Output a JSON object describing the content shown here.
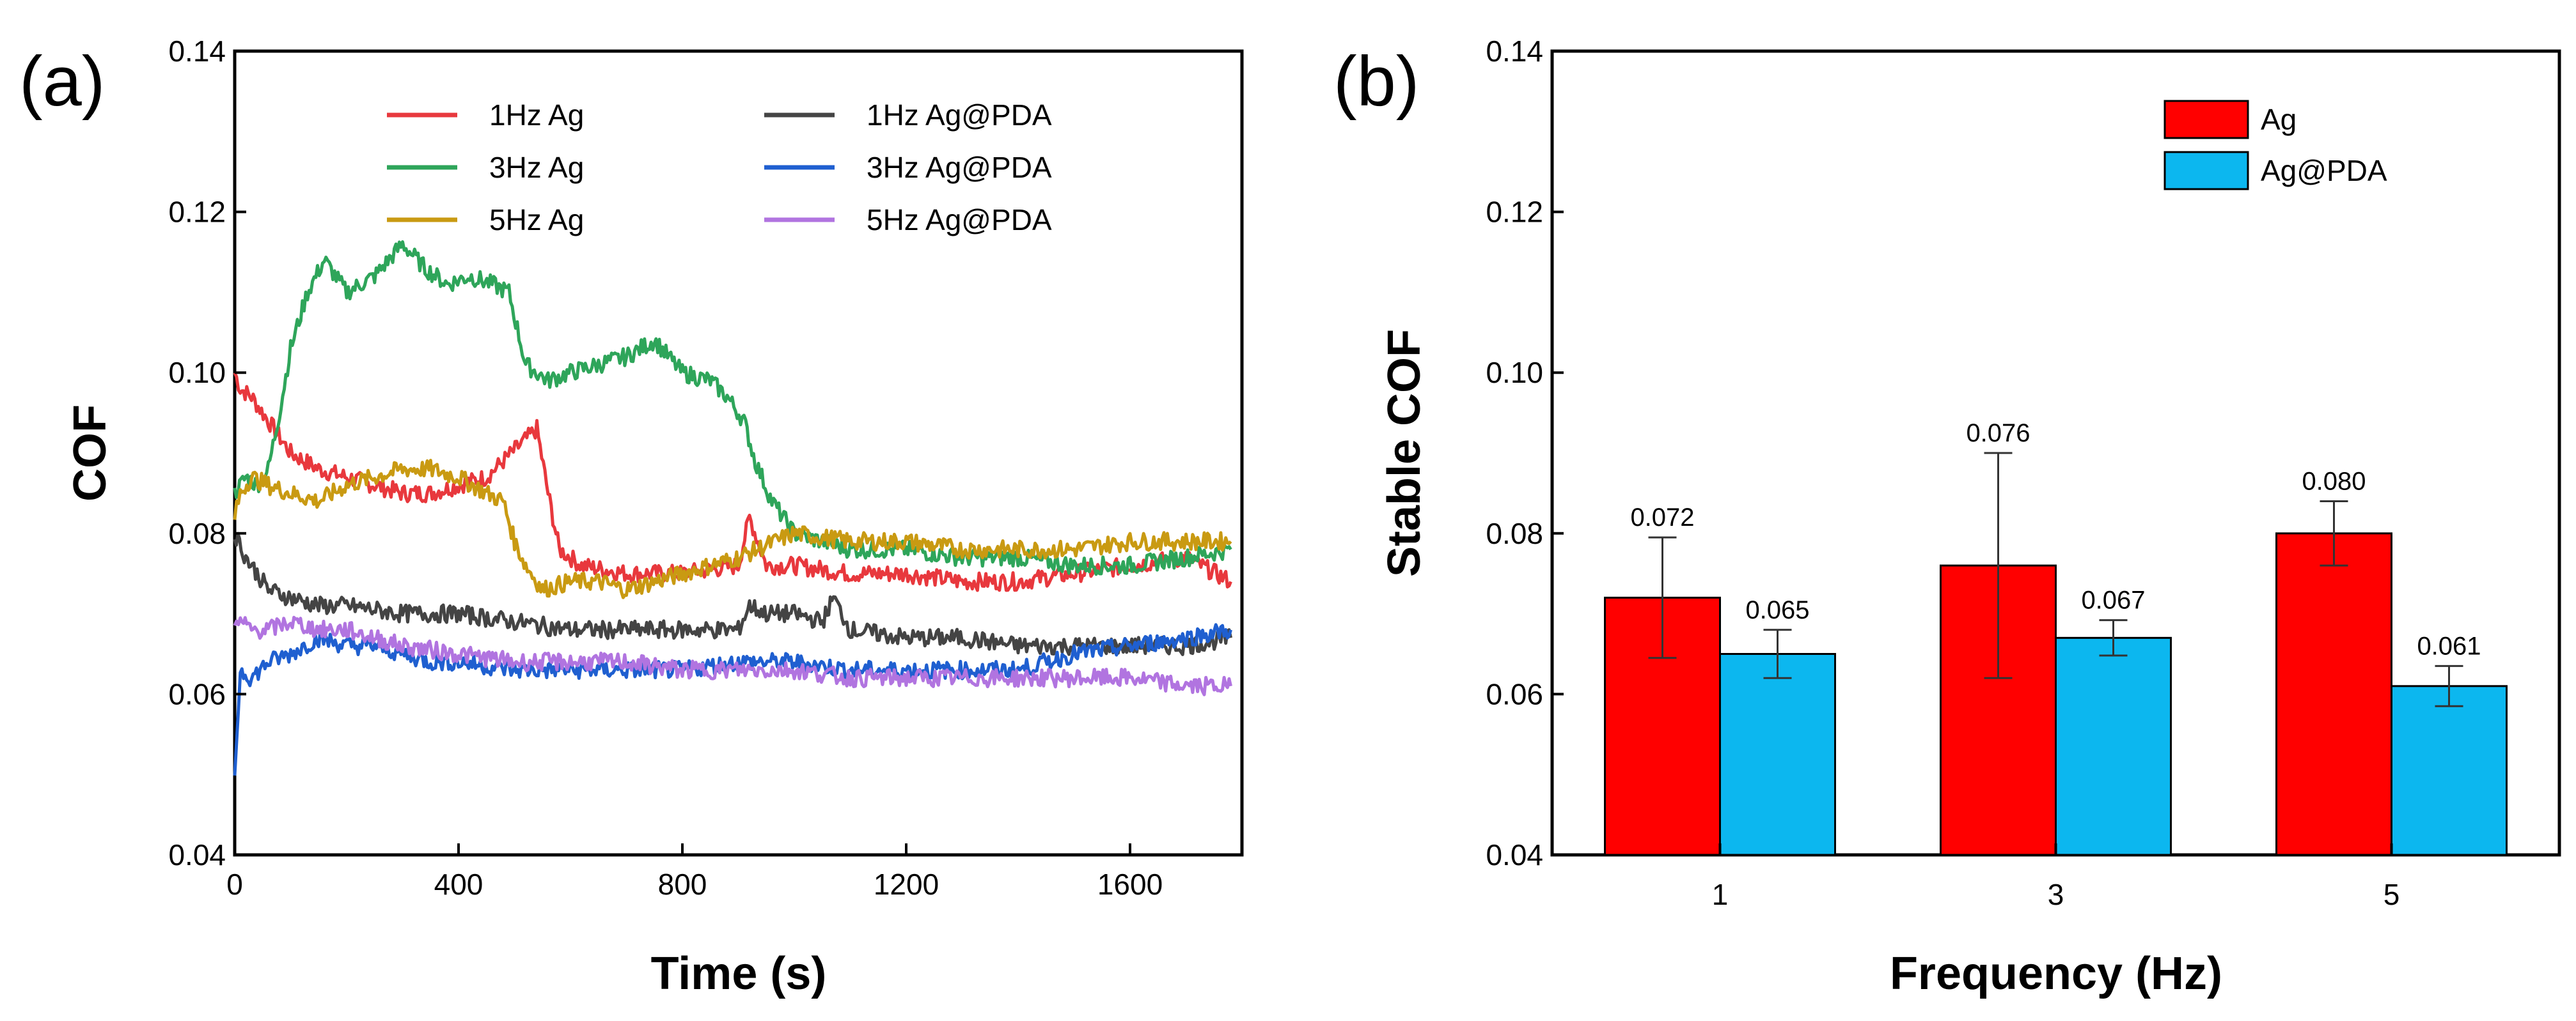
{
  "chart_data": [
    {
      "panel_label": "(a)",
      "type": "line",
      "title": "",
      "xlabel": "Time (s)",
      "ylabel": "COF",
      "xlim": [
        0,
        1800
      ],
      "ylim": [
        0.04,
        0.14
      ],
      "xticks": [
        "0",
        "400",
        "800",
        "1200",
        "1600"
      ],
      "yticks": [
        "0.04",
        "0.06",
        "0.08",
        "0.10",
        "0.12",
        "0.14"
      ],
      "legend_position": "top",
      "series": [
        {
          "name": "1Hz Ag",
          "color": "#e8383d",
          "x": [
            0,
            10,
            30,
            60,
            100,
            150,
            200,
            250,
            300,
            350,
            400,
            450,
            480,
            510,
            540,
            560,
            580,
            620,
            700,
            800,
            900,
            920,
            950,
            1000,
            1100,
            1200,
            1300,
            1400,
            1500,
            1600,
            1700,
            1780
          ],
          "y": [
            0.1,
            0.098,
            0.097,
            0.094,
            0.09,
            0.088,
            0.087,
            0.086,
            0.085,
            0.085,
            0.086,
            0.087,
            0.089,
            0.091,
            0.093,
            0.085,
            0.078,
            0.076,
            0.075,
            0.075,
            0.076,
            0.082,
            0.076,
            0.076,
            0.075,
            0.075,
            0.074,
            0.074,
            0.075,
            0.076,
            0.077,
            0.074
          ]
        },
        {
          "name": "3Hz Ag",
          "color": "#2ea55a",
          "x": [
            0,
            20,
            40,
            60,
            80,
            100,
            130,
            160,
            200,
            250,
            300,
            340,
            380,
            420,
            460,
            490,
            520,
            560,
            600,
            650,
            700,
            750,
            800,
            850,
            880,
            910,
            930,
            960,
            1000,
            1050,
            1100,
            1200,
            1300,
            1400,
            1500,
            1600,
            1700,
            1780
          ],
          "y": [
            0.085,
            0.087,
            0.086,
            0.088,
            0.095,
            0.103,
            0.11,
            0.114,
            0.11,
            0.112,
            0.116,
            0.113,
            0.111,
            0.112,
            0.111,
            0.11,
            0.101,
            0.099,
            0.1,
            0.101,
            0.102,
            0.104,
            0.1,
            0.099,
            0.097,
            0.094,
            0.089,
            0.084,
            0.08,
            0.079,
            0.078,
            0.078,
            0.077,
            0.077,
            0.076,
            0.076,
            0.077,
            0.078
          ]
        },
        {
          "name": "5Hz Ag",
          "color": "#c99a12",
          "x": [
            0,
            10,
            30,
            60,
            100,
            150,
            200,
            250,
            300,
            350,
            400,
            450,
            480,
            500,
            520,
            550,
            600,
            650,
            700,
            800,
            900,
            1000,
            1100,
            1200,
            1300,
            1400,
            1500,
            1600,
            1700,
            1780
          ],
          "y": [
            0.082,
            0.085,
            0.087,
            0.086,
            0.085,
            0.084,
            0.086,
            0.087,
            0.088,
            0.088,
            0.087,
            0.085,
            0.084,
            0.079,
            0.076,
            0.073,
            0.074,
            0.074,
            0.073,
            0.075,
            0.077,
            0.08,
            0.079,
            0.079,
            0.078,
            0.078,
            0.078,
            0.079,
            0.079,
            0.079
          ]
        },
        {
          "name": "1Hz Ag@PDA",
          "color": "#444444",
          "x": [
            0,
            20,
            40,
            60,
            100,
            150,
            200,
            300,
            400,
            500,
            600,
            700,
            800,
            900,
            920,
            950,
            1000,
            1050,
            1070,
            1100,
            1200,
            1300,
            1400,
            1500,
            1600,
            1700,
            1780
          ],
          "y": [
            0.08,
            0.077,
            0.075,
            0.073,
            0.072,
            0.071,
            0.071,
            0.07,
            0.07,
            0.069,
            0.068,
            0.068,
            0.068,
            0.068,
            0.071,
            0.07,
            0.07,
            0.069,
            0.072,
            0.068,
            0.067,
            0.067,
            0.066,
            0.066,
            0.066,
            0.066,
            0.067
          ]
        },
        {
          "name": "3Hz Ag@PDA",
          "color": "#1f5fd0",
          "x": [
            0,
            10,
            30,
            60,
            100,
            150,
            200,
            250,
            300,
            350,
            400,
            500,
            600,
            700,
            800,
            900,
            1000,
            1100,
            1200,
            1300,
            1400,
            1500,
            1600,
            1700,
            1780
          ],
          "y": [
            0.05,
            0.063,
            0.062,
            0.064,
            0.065,
            0.067,
            0.066,
            0.066,
            0.065,
            0.064,
            0.064,
            0.063,
            0.063,
            0.063,
            0.063,
            0.064,
            0.064,
            0.063,
            0.063,
            0.063,
            0.063,
            0.065,
            0.066,
            0.067,
            0.068
          ]
        },
        {
          "name": "5Hz Ag@PDA",
          "color": "#b174e0",
          "x": [
            0,
            10,
            30,
            60,
            100,
            150,
            200,
            250,
            300,
            400,
            500,
            600,
            700,
            800,
            900,
            1000,
            1100,
            1200,
            1300,
            1400,
            1500,
            1600,
            1700,
            1780
          ],
          "y": [
            0.068,
            0.069,
            0.068,
            0.068,
            0.069,
            0.068,
            0.068,
            0.067,
            0.066,
            0.065,
            0.064,
            0.064,
            0.064,
            0.063,
            0.063,
            0.063,
            0.062,
            0.062,
            0.062,
            0.062,
            0.062,
            0.062,
            0.061,
            0.061
          ]
        }
      ]
    },
    {
      "panel_label": "(b)",
      "type": "bar",
      "title": "",
      "xlabel": "Frequency (Hz)",
      "ylabel": "Stable COF",
      "ylim": [
        0.04,
        0.14
      ],
      "yticks": [
        "0.04",
        "0.06",
        "0.08",
        "0.10",
        "0.12",
        "0.14"
      ],
      "categories": [
        "1",
        "3",
        "5"
      ],
      "legend_position": "top-right",
      "series": [
        {
          "name": "Ag",
          "color": "#ff0000",
          "values": [
            0.072,
            0.076,
            0.08
          ],
          "errors": [
            0.0075,
            0.014,
            0.004
          ],
          "labels": [
            "0.072",
            "0.076",
            "0.080"
          ]
        },
        {
          "name": "Ag@PDA",
          "color": "#0cb7ef",
          "values": [
            0.065,
            0.067,
            0.061
          ],
          "errors": [
            0.003,
            0.0022,
            0.0025
          ],
          "labels": [
            "0.065",
            "0.067",
            "0.061"
          ]
        }
      ]
    }
  ]
}
